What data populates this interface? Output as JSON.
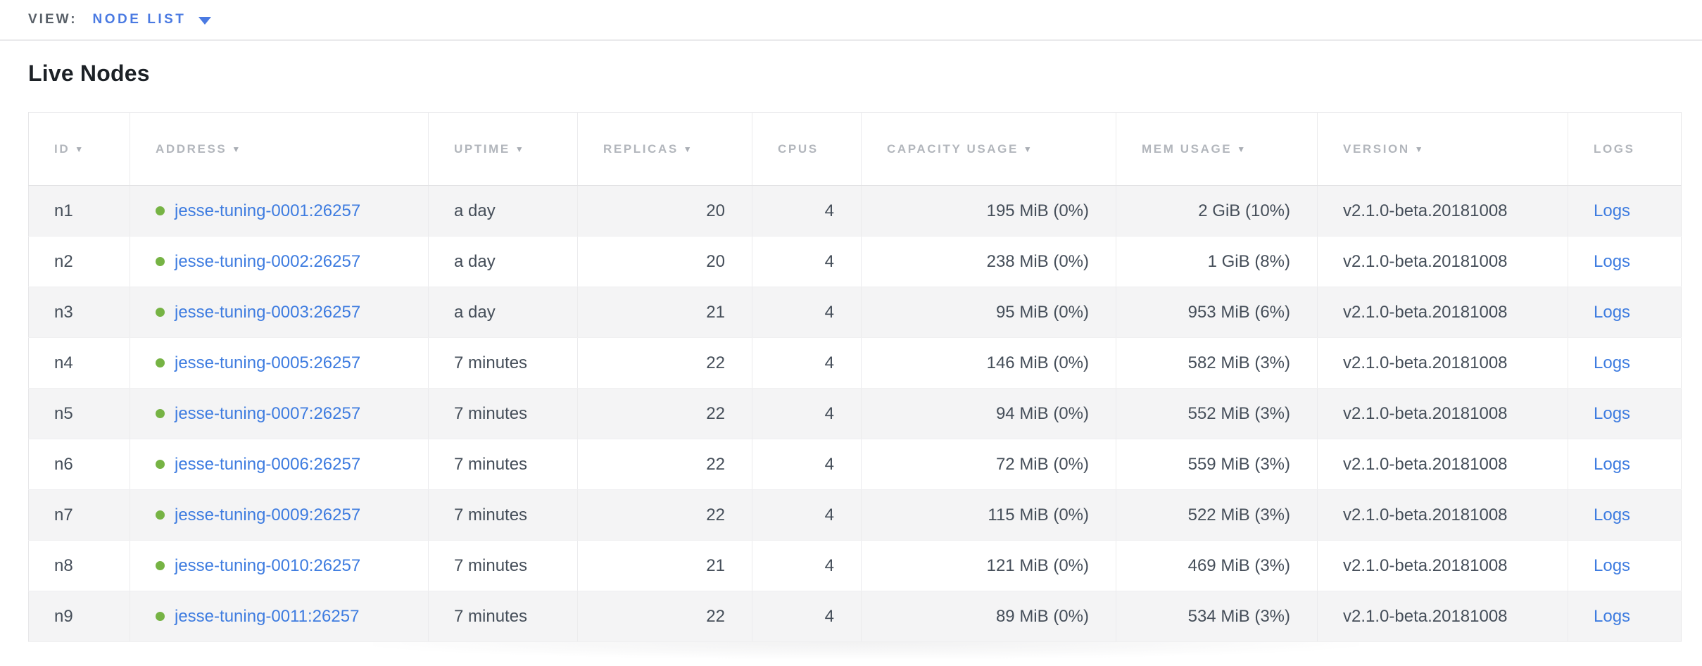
{
  "colors": {
    "accent_blue": "#4a7ae2",
    "link_blue": "#3e7ce0",
    "status_green": "#76b344"
  },
  "view_bar": {
    "label": "VIEW:",
    "selected_view": "NODE LIST"
  },
  "page": {
    "title": "Live Nodes"
  },
  "table": {
    "sort_icon": "▼",
    "columns": [
      {
        "key": "id",
        "label": "ID",
        "sortable": true
      },
      {
        "key": "address",
        "label": "ADDRESS",
        "sortable": true
      },
      {
        "key": "uptime",
        "label": "UPTIME",
        "sortable": true
      },
      {
        "key": "replicas",
        "label": "REPLICAS",
        "sortable": true
      },
      {
        "key": "cpus",
        "label": "CPUS",
        "sortable": false
      },
      {
        "key": "capacity",
        "label": "CAPACITY USAGE",
        "sortable": true
      },
      {
        "key": "mem",
        "label": "MEM USAGE",
        "sortable": true
      },
      {
        "key": "version",
        "label": "VERSION",
        "sortable": true
      },
      {
        "key": "logs",
        "label": "LOGS",
        "sortable": false
      }
    ],
    "rows": [
      {
        "id": "n1",
        "address": "jesse-tuning-0001:26257",
        "uptime": "a day",
        "replicas": "20",
        "cpus": "4",
        "capacity": "195 MiB (0%)",
        "mem": "2 GiB (10%)",
        "version": "v2.1.0-beta.20181008",
        "logs": "Logs"
      },
      {
        "id": "n2",
        "address": "jesse-tuning-0002:26257",
        "uptime": "a day",
        "replicas": "20",
        "cpus": "4",
        "capacity": "238 MiB (0%)",
        "mem": "1 GiB (8%)",
        "version": "v2.1.0-beta.20181008",
        "logs": "Logs"
      },
      {
        "id": "n3",
        "address": "jesse-tuning-0003:26257",
        "uptime": "a day",
        "replicas": "21",
        "cpus": "4",
        "capacity": "95 MiB (0%)",
        "mem": "953 MiB (6%)",
        "version": "v2.1.0-beta.20181008",
        "logs": "Logs"
      },
      {
        "id": "n4",
        "address": "jesse-tuning-0005:26257",
        "uptime": "7 minutes",
        "replicas": "22",
        "cpus": "4",
        "capacity": "146 MiB (0%)",
        "mem": "582 MiB (3%)",
        "version": "v2.1.0-beta.20181008",
        "logs": "Logs"
      },
      {
        "id": "n5",
        "address": "jesse-tuning-0007:26257",
        "uptime": "7 minutes",
        "replicas": "22",
        "cpus": "4",
        "capacity": "94 MiB (0%)",
        "mem": "552 MiB (3%)",
        "version": "v2.1.0-beta.20181008",
        "logs": "Logs"
      },
      {
        "id": "n6",
        "address": "jesse-tuning-0006:26257",
        "uptime": "7 minutes",
        "replicas": "22",
        "cpus": "4",
        "capacity": "72 MiB (0%)",
        "mem": "559 MiB (3%)",
        "version": "v2.1.0-beta.20181008",
        "logs": "Logs"
      },
      {
        "id": "n7",
        "address": "jesse-tuning-0009:26257",
        "uptime": "7 minutes",
        "replicas": "22",
        "cpus": "4",
        "capacity": "115 MiB (0%)",
        "mem": "522 MiB (3%)",
        "version": "v2.1.0-beta.20181008",
        "logs": "Logs"
      },
      {
        "id": "n8",
        "address": "jesse-tuning-0010:26257",
        "uptime": "7 minutes",
        "replicas": "21",
        "cpus": "4",
        "capacity": "121 MiB (0%)",
        "mem": "469 MiB (3%)",
        "version": "v2.1.0-beta.20181008",
        "logs": "Logs"
      },
      {
        "id": "n9",
        "address": "jesse-tuning-0011:26257",
        "uptime": "7 minutes",
        "replicas": "22",
        "cpus": "4",
        "capacity": "89 MiB (0%)",
        "mem": "534 MiB (3%)",
        "version": "v2.1.0-beta.20181008",
        "logs": "Logs"
      }
    ]
  }
}
